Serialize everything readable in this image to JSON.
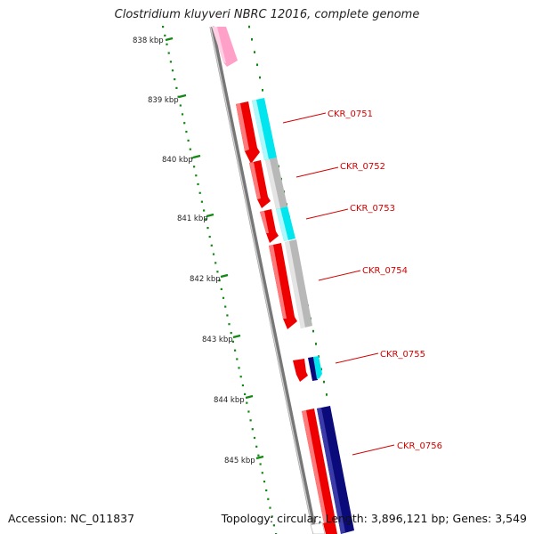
{
  "title": "Clostridium kluyveri NBRC 12016, complete genome",
  "accession_text": "Accession: NC_011837",
  "topology_text": "Topology: circular; Length: 3,896,121 bp; Genes: 3,549",
  "kbp_labels": [
    "838 kbp",
    "839 kbp",
    "840 kbp",
    "841 kbp",
    "842 kbp",
    "843 kbp",
    "844 kbp",
    "845 kbp"
  ],
  "gene_labels": [
    "CKR_0751",
    "CKR_0752",
    "CKR_0753",
    "CKR_0754",
    "CKR_0755",
    "CKR_0756"
  ],
  "colors": {
    "gene_label": "#d40000",
    "ruler_tick": "#118811",
    "backbone": "#888888",
    "cds_red": "#ee0000",
    "cds_cyan": "#00e5ee",
    "cds_grey": "#b8b8b8",
    "cds_navy": "#0a0a7a",
    "cds_pink": "#ffa0c8"
  }
}
